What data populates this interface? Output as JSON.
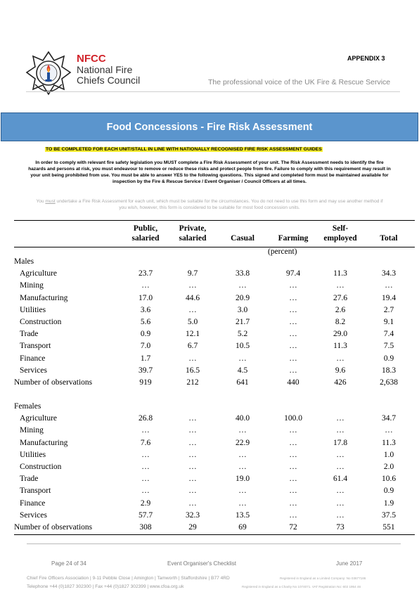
{
  "header": {
    "org_abbrev": "NFCC",
    "org_line1": "National Fire",
    "org_line2": "Chiefs Council",
    "appendix": "APPENDIX 3",
    "tagline": "The professional voice of the UK Fire & Rescue Service"
  },
  "banner_title": "Food Concessions - Fire Risk Assessment",
  "highlight_note": "TO BE COMPLETED FOR EACH UNIT/STALL IN LINE WITH NATIONALLY RECOGNISED FIRE RISK ASSESSMENT GUIDES",
  "instructions": "In order to comply with relevant fire safety legislation you MUST complete a Fire Risk Assessment of your unit. The Risk Assessment needs to identify the fire hazards and persons at risk, you must endeavour to remove or reduce these risks and protect people from fire. Failure to comply with this requirement may result in your unit being prohibited from use. You must be able to answer YES to the following questions. This signed and completed form must be maintained available for inspection by the Fire & Rescue Service / Event Organiser / Council Officers at all times.",
  "guidance": {
    "prefix": "You ",
    "underlined": "must",
    "rest": " undertake a Fire Risk Assessment for each unit, which must be suitable for the circumstances. You do not need to use this form and may use another method if you wish, however, this form is considered to be suitable for most food concession units."
  },
  "table": {
    "columns": [
      {
        "line1": "Public,",
        "line2": "salaried"
      },
      {
        "line1": "Private,",
        "line2": "salaried"
      },
      {
        "line1": "",
        "line2": "Casual"
      },
      {
        "line1": "",
        "line2": "Farming"
      },
      {
        "line1": "Self-",
        "line2": "employed"
      },
      {
        "line1": "",
        "line2": "Total"
      }
    ],
    "unit": "(percent)",
    "males_heading": "Males",
    "males": [
      {
        "label": "Agriculture",
        "values": [
          "23.7",
          "9.7",
          "33.8",
          "97.4",
          "11.3",
          "34.3"
        ]
      },
      {
        "label": "Mining",
        "values": [
          "…",
          "…",
          "…",
          "…",
          "…",
          "…"
        ]
      },
      {
        "label": "Manufacturing",
        "values": [
          "17.0",
          "44.6",
          "20.9",
          "…",
          "27.6",
          "19.4"
        ]
      },
      {
        "label": "Utilities",
        "values": [
          "3.6",
          "…",
          "3.0",
          "…",
          "2.6",
          "2.7"
        ]
      },
      {
        "label": "Construction",
        "values": [
          "5.6",
          "5.0",
          "21.7",
          "…",
          "8.2",
          "9.1"
        ]
      },
      {
        "label": "Trade",
        "values": [
          "0.9",
          "12.1",
          "5.2",
          "…",
          "29.0",
          "7.4"
        ]
      },
      {
        "label": "Transport",
        "values": [
          "7.0",
          "6.7",
          "10.5",
          "…",
          "11.3",
          "7.5"
        ]
      },
      {
        "label": "Finance",
        "values": [
          "1.7",
          "…",
          "…",
          "…",
          "…",
          "0.9"
        ]
      },
      {
        "label": "Services",
        "values": [
          "39.7",
          "16.5",
          "4.5",
          "…",
          "9.6",
          "18.3"
        ]
      }
    ],
    "males_obs": {
      "label": "Number of observations",
      "values": [
        "919",
        "212",
        "641",
        "440",
        "426",
        "2,638"
      ]
    },
    "females_heading": "Females",
    "females": [
      {
        "label": "Agriculture",
        "values": [
          "26.8",
          "…",
          "40.0",
          "100.0",
          "…",
          "34.7"
        ]
      },
      {
        "label": "Mining",
        "values": [
          "…",
          "…",
          "…",
          "…",
          "…",
          "…"
        ]
      },
      {
        "label": "Manufacturing",
        "values": [
          "7.6",
          "…",
          "22.9",
          "…",
          "17.8",
          "11.3"
        ]
      },
      {
        "label": "Utilities",
        "values": [
          "…",
          "…",
          "…",
          "…",
          "…",
          "1.0"
        ]
      },
      {
        "label": "Construction",
        "values": [
          "…",
          "…",
          "…",
          "…",
          "…",
          "2.0"
        ]
      },
      {
        "label": "Trade",
        "values": [
          "…",
          "…",
          "19.0",
          "…",
          "61.4",
          "10.6"
        ]
      },
      {
        "label": "Transport",
        "values": [
          "…",
          "…",
          "…",
          "…",
          "…",
          "0.9"
        ]
      },
      {
        "label": "Finance",
        "values": [
          "2.9",
          "…",
          "…",
          "…",
          "…",
          "1.9"
        ]
      },
      {
        "label": "Services",
        "values": [
          "57.7",
          "32.3",
          "13.5",
          "…",
          "…",
          "37.5"
        ]
      }
    ],
    "females_obs": {
      "label": "Number of observations",
      "values": [
        "308",
        "29",
        "69",
        "72",
        "73",
        "551"
      ]
    }
  },
  "footer": {
    "page": "Page 24 of 34",
    "document": "Event Organiser's Checklist",
    "date": "June 2017",
    "address": "Chief Fire Officers Association | 9-11 Pebble Close | Amington | Tamworth | Staffordshire | B77 4RD",
    "telephone": "Telephone +44 (0)1827 302300 | Fax +44 (0)1827 302399 | www.cfoa.org.uk",
    "registration1": "Registered in England as a Limited Company: No 03677186",
    "registration2": "Registered in England as a Charity No 1074071. VAT Registration No: 602 1954 46"
  },
  "colors": {
    "brand_red": "#d1232a",
    "banner_blue": "#5b95cd",
    "highlight_yellow": "#f7ec2a"
  }
}
